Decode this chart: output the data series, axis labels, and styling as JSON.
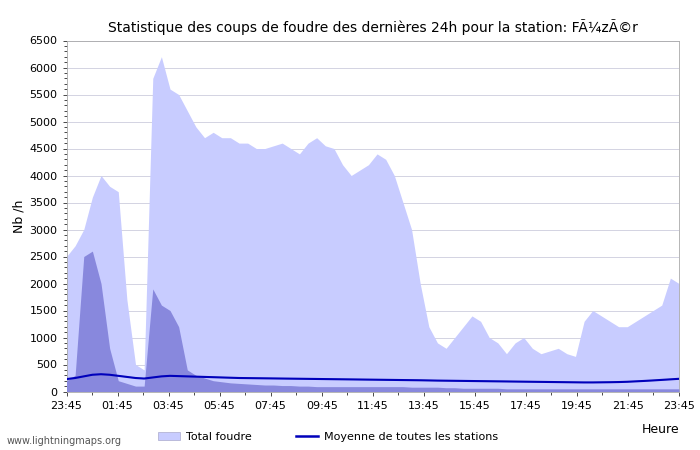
{
  "title_display": "Statistique des coups de foudre des dernières 24h pour la station: FÃ¼zÃ©r",
  "ylabel": "Nb /h",
  "xlabel": "Heure",
  "watermark": "www.lightningmaps.org",
  "ylim": [
    0,
    6500
  ],
  "yticks": [
    0,
    500,
    1000,
    1500,
    2000,
    2500,
    3000,
    3500,
    4000,
    4500,
    5000,
    5500,
    6000,
    6500
  ],
  "xtick_labels": [
    "23:45",
    "01:45",
    "03:45",
    "05:45",
    "07:45",
    "09:45",
    "11:45",
    "13:45",
    "15:45",
    "17:45",
    "19:45",
    "21:45",
    "23:45"
  ],
  "color_total": "#c8ccff",
  "color_station": "#8888dd",
  "color_line": "#0000bb",
  "color_line_light": "#6699cc",
  "background_color": "#ffffff",
  "plot_bg_color": "#ffffff",
  "legend_total": "Total foudre",
  "legend_line": "Moyenne de toutes les stations",
  "total_foudre": [
    2500,
    2700,
    3000,
    3600,
    4000,
    3800,
    3700,
    1700,
    500,
    400,
    5800,
    6200,
    5600,
    5500,
    5200,
    4900,
    4700,
    4800,
    4700,
    4700,
    4600,
    4600,
    4500,
    4500,
    4550,
    4600,
    4500,
    4400,
    4600,
    4700,
    4550,
    4500,
    4200,
    4000,
    4100,
    4200,
    4400,
    4300,
    4000,
    3500,
    3000,
    2000,
    1200,
    900,
    800,
    1000,
    1200,
    1400,
    1300,
    1000,
    900,
    700,
    900,
    1000,
    800,
    700,
    750,
    800,
    700,
    650,
    1300,
    1500,
    1400,
    1300,
    1200,
    1200,
    1300,
    1400,
    1500,
    1600,
    2100,
    2000
  ],
  "station_foudre": [
    200,
    300,
    2500,
    2600,
    2000,
    800,
    200,
    150,
    100,
    100,
    1900,
    1600,
    1500,
    1200,
    400,
    300,
    250,
    200,
    180,
    160,
    150,
    140,
    130,
    120,
    120,
    110,
    110,
    100,
    100,
    90,
    90,
    90,
    90,
    90,
    90,
    90,
    90,
    90,
    90,
    90,
    80,
    80,
    80,
    80,
    70,
    70,
    60,
    60,
    60,
    60,
    60,
    50,
    50,
    50,
    50,
    50,
    50,
    50,
    50,
    50,
    50,
    50,
    50,
    50,
    50,
    50,
    50,
    50,
    50,
    50,
    50,
    50
  ],
  "moyenne": [
    230,
    250,
    280,
    310,
    320,
    310,
    290,
    270,
    250,
    240,
    260,
    280,
    290,
    285,
    280,
    275,
    270,
    265,
    260,
    255,
    250,
    248,
    246,
    244,
    242,
    240,
    238,
    236,
    234,
    232,
    230,
    228,
    226,
    224,
    222,
    220,
    218,
    216,
    214,
    212,
    210,
    208,
    205,
    202,
    200,
    198,
    196,
    194,
    192,
    190,
    188,
    186,
    184,
    182,
    180,
    178,
    176,
    174,
    172,
    170,
    168,
    168,
    170,
    172,
    175,
    180,
    188,
    196,
    205,
    215,
    225,
    235
  ]
}
